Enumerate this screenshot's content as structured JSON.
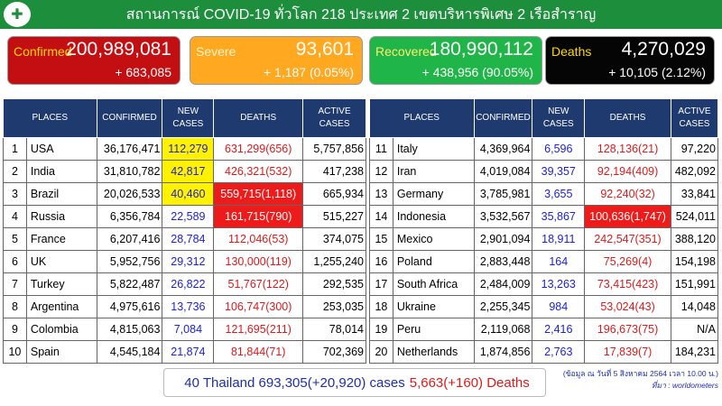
{
  "header": {
    "title": "สถานการณ์ COVID-19 ทั่วโลก 218 ประเทศ 2 เขตบริหารพิเศษ 2 เรือสำราญ"
  },
  "cards": [
    {
      "label": "Confirmed",
      "value": "200,989,081",
      "sub": "+ 683,085",
      "bg": "#c40f12",
      "label_color": "#ffd800",
      "val_color": "#ffffff"
    },
    {
      "label": "Severe",
      "value": "93,601",
      "sub": "+ 1,187 (0.05%)",
      "bg": "#ffa820",
      "label_color": "#fff6c8",
      "val_color": "#ffffff"
    },
    {
      "label": "Recovered",
      "value": "180,990,112",
      "sub": "+ 438,956 (90.05%)",
      "bg": "#20b548",
      "label_color": "#fff06a",
      "val_color": "#ffffff"
    },
    {
      "label": "Deaths",
      "value": "4,270,029",
      "sub": "+ 10,105 (2.12%)",
      "bg": "#050505",
      "label_color": "#ffd800",
      "val_color": "#ffffff"
    }
  ],
  "table_headers": {
    "places": "PLACES",
    "confirmed": "CONFIRMED",
    "new": "NEW CASES",
    "deaths": "DEATHS",
    "active": "ACTIVE CASES"
  },
  "left_rows": [
    {
      "rank": "1",
      "place": "USA",
      "confirmed": "36,176,471",
      "new": "112,279",
      "deaths": "631,299(656)",
      "active": "5,757,856",
      "new_hi": true,
      "death_hi": false
    },
    {
      "rank": "2",
      "place": "India",
      "confirmed": "31,810,782",
      "new": "42,817",
      "deaths": "426,321(532)",
      "active": "417,238",
      "new_hi": true,
      "death_hi": false
    },
    {
      "rank": "3",
      "place": "Brazil",
      "confirmed": "20,026,533",
      "new": "40,460",
      "deaths": "559,715(1,118)",
      "active": "665,934",
      "new_hi": true,
      "death_hi": true
    },
    {
      "rank": "4",
      "place": "Russia",
      "confirmed": "6,356,784",
      "new": "22,589",
      "deaths": "161,715(790)",
      "active": "515,227",
      "new_hi": false,
      "death_hi": true
    },
    {
      "rank": "5",
      "place": "France",
      "confirmed": "6,207,416",
      "new": "28,784",
      "deaths": "112,046(53)",
      "active": "374,075",
      "new_hi": false,
      "death_hi": false
    },
    {
      "rank": "6",
      "place": "UK",
      "confirmed": "5,952,756",
      "new": "29,312",
      "deaths": "130,000(119)",
      "active": "1,255,240",
      "new_hi": false,
      "death_hi": false
    },
    {
      "rank": "7",
      "place": "Turkey",
      "confirmed": "5,822,487",
      "new": "26,822",
      "deaths": "51,767(122)",
      "active": "292,535",
      "new_hi": false,
      "death_hi": false
    },
    {
      "rank": "8",
      "place": "Argentina",
      "confirmed": "4,975,616",
      "new": "13,736",
      "deaths": "106,747(300)",
      "active": "253,035",
      "new_hi": false,
      "death_hi": false
    },
    {
      "rank": "9",
      "place": "Colombia",
      "confirmed": "4,815,063",
      "new": "7,084",
      "deaths": "121,695(211)",
      "active": "78,014",
      "new_hi": false,
      "death_hi": false
    },
    {
      "rank": "10",
      "place": "Spain",
      "confirmed": "4,545,184",
      "new": "21,874",
      "deaths": "81,844(71)",
      "active": "702,369",
      "new_hi": false,
      "death_hi": false
    }
  ],
  "right_rows": [
    {
      "rank": "11",
      "place": "Italy",
      "confirmed": "4,369,964",
      "new": "6,596",
      "deaths": "128,136(21)",
      "active": "97,220",
      "new_hi": false,
      "death_hi": false
    },
    {
      "rank": "12",
      "place": "Iran",
      "confirmed": "4,019,084",
      "new": "39,357",
      "deaths": "92,194(409)",
      "active": "482,092",
      "new_hi": false,
      "death_hi": false
    },
    {
      "rank": "13",
      "place": "Germany",
      "confirmed": "3,785,981",
      "new": "3,655",
      "deaths": "92,240(32)",
      "active": "33,841",
      "new_hi": false,
      "death_hi": false
    },
    {
      "rank": "14",
      "place": "Indonesia",
      "confirmed": "3,532,567",
      "new": "35,867",
      "deaths": "100,636(1,747)",
      "active": "524,011",
      "new_hi": false,
      "death_hi": true
    },
    {
      "rank": "15",
      "place": "Mexico",
      "confirmed": "2,901,094",
      "new": "18,911",
      "deaths": "242,547(351)",
      "active": "388,120",
      "new_hi": false,
      "death_hi": false
    },
    {
      "rank": "16",
      "place": "Poland",
      "confirmed": "2,883,448",
      "new": "164",
      "deaths": "75,269(4)",
      "active": "154,198",
      "new_hi": false,
      "death_hi": false
    },
    {
      "rank": "17",
      "place": "South Africa",
      "confirmed": "2,484,009",
      "new": "13,263",
      "deaths": "73,415(423)",
      "active": "151,991",
      "new_hi": false,
      "death_hi": false
    },
    {
      "rank": "18",
      "place": "Ukraine",
      "confirmed": "2,255,345",
      "new": "984",
      "deaths": "53,024(43)",
      "active": "14,048",
      "new_hi": false,
      "death_hi": false
    },
    {
      "rank": "19",
      "place": "Peru",
      "confirmed": "2,119,068",
      "new": "2,416",
      "deaths": "196,673(75)",
      "active": "N/A",
      "new_hi": false,
      "death_hi": false
    },
    {
      "rank": "20",
      "place": "Netherlands",
      "confirmed": "1,874,856",
      "new": "2,763",
      "deaths": "17,839(7)",
      "active": "184,231",
      "new_hi": false,
      "death_hi": false
    }
  ],
  "thailand": {
    "text": "40 Thailand 693,305(+20,920) cases",
    "deaths": "5,663(+160) Deaths"
  },
  "note": {
    "line1": "(ข้อมูล ณ วันที่ 5 สิงหาคม 2564 เวลา 10.00 น.)",
    "line2": "ที่มา : worldometers"
  },
  "logo": {
    "icon": "ministry-emblem-icon",
    "glyph": "✚"
  }
}
